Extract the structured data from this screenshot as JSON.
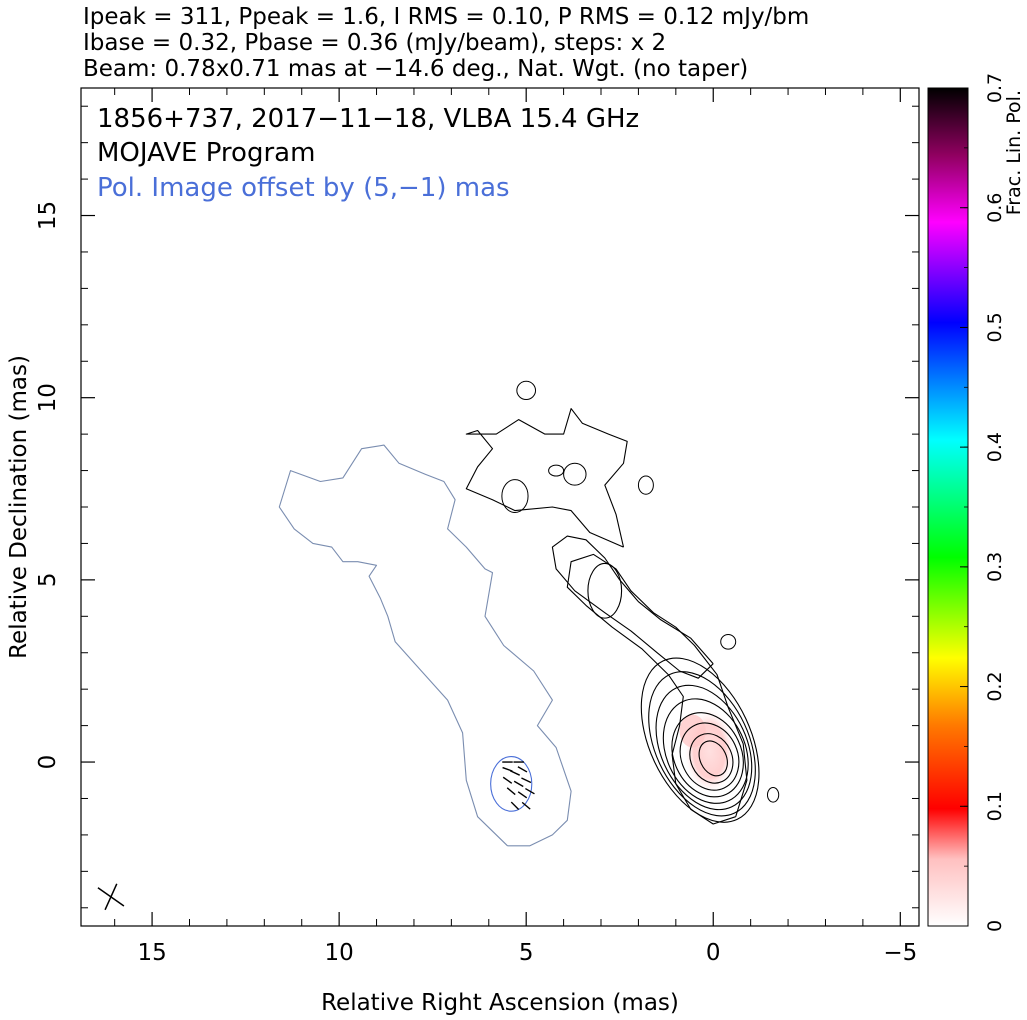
{
  "header": {
    "line1": "Ipeak = 311, Ppeak = 1.6, I RMS = 0.10, P RMS = 0.12 mJy/bm",
    "line2": "Ibase = 0.32, Pbase = 0.36 (mJy/beam), steps: x 2",
    "line3": "Beam: 0.78x0.71 mas at −14.6 deg., Nat. Wgt. (no taper)"
  },
  "plot_labels": {
    "source_line": "1856+737, 2017−11−18, VLBA 15.4 GHz",
    "program": "MOJAVE Program",
    "offset_note": "Pol. Image offset by (5,−1) mas"
  },
  "colors": {
    "stokes_i_contours": "#000000",
    "pol_contours": "#4a6fd8",
    "pol_jet_contour": "#7a8db0",
    "evpa_ticks": "#000000",
    "offset_note": "#4a6fd8"
  },
  "chart_data": {
    "type": "contour",
    "title": "",
    "xlabel": "Relative Right Ascension (mas)",
    "ylabel": "Relative Declination (mas)",
    "xlim": [
      16.9,
      -5.5
    ],
    "ylim": [
      -4.5,
      18.5
    ],
    "x_ticks": [
      15,
      10,
      5,
      0,
      -5
    ],
    "x_tick_labels": [
      "15",
      "10",
      "5",
      "0",
      "−5"
    ],
    "y_ticks": [
      0,
      5,
      10,
      15
    ],
    "y_tick_labels": [
      "0",
      "5",
      "10",
      "15"
    ],
    "grid": false,
    "x_reversed": true,
    "colorbar": {
      "label": "Frac. Lin. Pol.",
      "range": [
        0,
        0.7
      ],
      "ticks": [
        0,
        0.1,
        0.2,
        0.3,
        0.4,
        0.5,
        0.6,
        0.7
      ],
      "tick_labels": [
        "0",
        "0.1",
        "0.2",
        "0.3",
        "0.4",
        "0.5",
        "0.6",
        "0.7"
      ],
      "colors": [
        "#ffffff",
        "#ffd0d0",
        "#ff0000",
        "#ff8000",
        "#ffff00",
        "#00ff00",
        "#00ffff",
        "#0000ff",
        "#ff00ff",
        "#000000"
      ]
    },
    "core": {
      "x": 0,
      "y": 0,
      "ipeak_mjy_per_beam": 311
    },
    "ppeak_mjy_per_beam": 1.6,
    "i_rms_mjy_per_beam": 0.1,
    "p_rms_mjy_per_beam": 0.12,
    "ibase_mjy_per_beam": 0.32,
    "pbase_mjy_per_beam": 0.36,
    "contour_step_factor": 2,
    "beam": {
      "major_mas": 0.78,
      "minor_mas": 0.71,
      "pa_deg": -14.6,
      "weighting": "Nat. Wgt. (no taper)"
    },
    "pol_offset_mas": [
      5,
      -1
    ],
    "series": [
      {
        "type": "contours",
        "component": "core",
        "levels": [
          {
            "cx": 0.0,
            "cy": 0.1,
            "rx": 0.35,
            "ry": 0.5
          },
          {
            "cx": 0.05,
            "cy": 0.1,
            "rx": 0.55,
            "ry": 0.7
          },
          {
            "cx": 0.1,
            "cy": 0.15,
            "rx": 0.75,
            "ry": 0.95
          },
          {
            "cx": 0.15,
            "cy": 0.2,
            "rx": 0.9,
            "ry": 1.2
          },
          {
            "cx": 0.2,
            "cy": 0.3,
            "rx": 1.05,
            "ry": 1.5
          },
          {
            "cx": 0.25,
            "cy": 0.4,
            "rx": 1.15,
            "ry": 1.8
          },
          {
            "cx": 0.3,
            "cy": 0.5,
            "rx": 1.25,
            "ry": 2.1
          },
          {
            "cx": 0.35,
            "cy": 0.6,
            "rx": 1.35,
            "ry": 2.4
          }
        ],
        "angle_deg": -25
      },
      {
        "type": "polyline",
        "component": "jet-inner-contour",
        "points": [
          [
            -0.6,
            -1.5
          ],
          [
            -0.9,
            -0.5
          ],
          [
            -0.8,
            0.5
          ],
          [
            -0.4,
            1.5
          ],
          [
            -0.1,
            2.4
          ],
          [
            0.5,
            3.2
          ],
          [
            1.0,
            3.7
          ],
          [
            1.6,
            4.1
          ],
          [
            2.2,
            4.7
          ],
          [
            2.6,
            5.3
          ],
          [
            3.2,
            5.7
          ],
          [
            3.8,
            5.5
          ],
          [
            3.9,
            4.8
          ],
          [
            3.4,
            4.3
          ],
          [
            2.7,
            3.7
          ],
          [
            1.9,
            3.1
          ],
          [
            1.2,
            2.4
          ],
          [
            0.8,
            1.8
          ],
          [
            0.9,
            1.0
          ],
          [
            1.1,
            0.2
          ],
          [
            1.0,
            -0.6
          ],
          [
            0.6,
            -1.3
          ],
          [
            0.0,
            -1.7
          ],
          [
            -0.6,
            -1.5
          ]
        ]
      },
      {
        "type": "polyline",
        "component": "jet-outer-contour",
        "points": [
          [
            0.0,
            2.7
          ],
          [
            0.6,
            3.4
          ],
          [
            1.4,
            3.9
          ],
          [
            2.0,
            4.4
          ],
          [
            2.5,
            5.0
          ],
          [
            2.9,
            5.6
          ],
          [
            3.4,
            6.1
          ],
          [
            3.9,
            6.2
          ],
          [
            4.3,
            5.9
          ],
          [
            4.2,
            5.3
          ],
          [
            3.7,
            4.7
          ],
          [
            2.9,
            4.1
          ],
          [
            2.2,
            3.6
          ],
          [
            1.5,
            3.0
          ],
          [
            0.9,
            2.5
          ],
          [
            0.4,
            2.3
          ],
          [
            0.0,
            2.7
          ]
        ]
      },
      {
        "type": "ellipse",
        "component": "knot-contour",
        "cx": 2.9,
        "cy": 4.7,
        "rx": 0.45,
        "ry": 0.75
      },
      {
        "type": "polyline",
        "component": "diffuse-region-contour",
        "points": [
          [
            2.4,
            5.9
          ],
          [
            3.3,
            6.3
          ],
          [
            3.8,
            6.9
          ],
          [
            4.3,
            7.0
          ],
          [
            5.3,
            6.9
          ],
          [
            5.9,
            7.2
          ],
          [
            6.6,
            7.5
          ],
          [
            6.3,
            8.1
          ],
          [
            5.9,
            8.6
          ],
          [
            6.3,
            9.1
          ],
          [
            6.6,
            9.0
          ],
          [
            5.8,
            9.0
          ],
          [
            5.2,
            9.4
          ],
          [
            4.5,
            9.0
          ],
          [
            4.0,
            9.0
          ],
          [
            3.8,
            9.7
          ],
          [
            3.5,
            9.3
          ],
          [
            2.8,
            9.0
          ],
          [
            2.3,
            8.8
          ],
          [
            2.4,
            8.2
          ],
          [
            2.9,
            7.6
          ],
          [
            2.6,
            6.8
          ],
          [
            2.4,
            5.9
          ]
        ]
      },
      {
        "type": "ellipses",
        "component": "small-islands",
        "items": [
          [
            5.3,
            7.3,
            0.35,
            0.45
          ],
          [
            3.7,
            7.9,
            0.3,
            0.3
          ],
          [
            4.2,
            8.0,
            0.2,
            0.15
          ],
          [
            5.0,
            10.2,
            0.25,
            0.25
          ],
          [
            1.8,
            7.6,
            0.2,
            0.25
          ],
          [
            -0.4,
            3.3,
            0.2,
            0.2
          ],
          [
            -1.6,
            -0.9,
            0.15,
            0.2
          ]
        ]
      },
      {
        "type": "polyline",
        "component": "pol-jet-contour",
        "points": [
          [
            5.5,
            -2.3
          ],
          [
            6.3,
            -1.5
          ],
          [
            6.6,
            -0.5
          ],
          [
            6.7,
            0.8
          ],
          [
            7.1,
            1.7
          ],
          [
            7.8,
            2.5
          ],
          [
            8.5,
            3.3
          ],
          [
            8.7,
            4.0
          ],
          [
            8.9,
            4.5
          ],
          [
            9.2,
            5.1
          ],
          [
            9.0,
            5.4
          ],
          [
            9.5,
            5.5
          ],
          [
            9.9,
            5.5
          ],
          [
            10.2,
            5.9
          ],
          [
            10.7,
            6.0
          ],
          [
            11.2,
            6.4
          ],
          [
            11.6,
            7.0
          ],
          [
            11.3,
            8.0
          ],
          [
            10.5,
            7.7
          ],
          [
            9.9,
            7.8
          ],
          [
            9.4,
            8.6
          ],
          [
            8.8,
            8.7
          ],
          [
            8.4,
            8.2
          ],
          [
            7.7,
            7.9
          ],
          [
            7.2,
            7.7
          ],
          [
            6.9,
            7.2
          ],
          [
            7.1,
            6.4
          ],
          [
            6.6,
            5.9
          ],
          [
            6.1,
            5.3
          ],
          [
            5.9,
            5.2
          ],
          [
            6.1,
            4.0
          ],
          [
            5.6,
            3.2
          ],
          [
            4.8,
            2.5
          ],
          [
            4.3,
            1.7
          ],
          [
            4.7,
            1.0
          ],
          [
            4.2,
            0.4
          ],
          [
            3.8,
            -0.8
          ],
          [
            3.9,
            -1.6
          ],
          [
            4.3,
            -2.0
          ],
          [
            4.9,
            -2.3
          ],
          [
            5.5,
            -2.3
          ]
        ]
      },
      {
        "type": "ellipse",
        "component": "pol-knot-contour",
        "cx": 5.4,
        "cy": -0.6,
        "rx": 0.55,
        "ry": 0.75
      },
      {
        "type": "evpa",
        "component": "evpa-sticks",
        "items": [
          [
            5.5,
            0.0,
            0
          ],
          [
            5.2,
            0.0,
            0
          ],
          [
            5.5,
            -0.2,
            20
          ],
          [
            5.3,
            -0.3,
            25
          ],
          [
            5.1,
            -0.2,
            30
          ],
          [
            5.5,
            -0.5,
            35
          ],
          [
            5.2,
            -0.6,
            30
          ],
          [
            5.0,
            -0.5,
            25
          ],
          [
            5.4,
            -0.8,
            40
          ],
          [
            5.1,
            -0.9,
            35
          ],
          [
            4.9,
            -0.8,
            30
          ],
          [
            5.3,
            -1.2,
            45
          ],
          [
            5.0,
            -1.2,
            40
          ]
        ]
      },
      {
        "type": "fill",
        "component": "frac-pol-core",
        "cx": 0.1,
        "cy": 0.3,
        "rx": 0.7,
        "ry": 1.2,
        "value": 0.04
      },
      {
        "type": "beam",
        "component": "beam-cross",
        "cx": 16.1,
        "cy": -3.7
      }
    ]
  }
}
